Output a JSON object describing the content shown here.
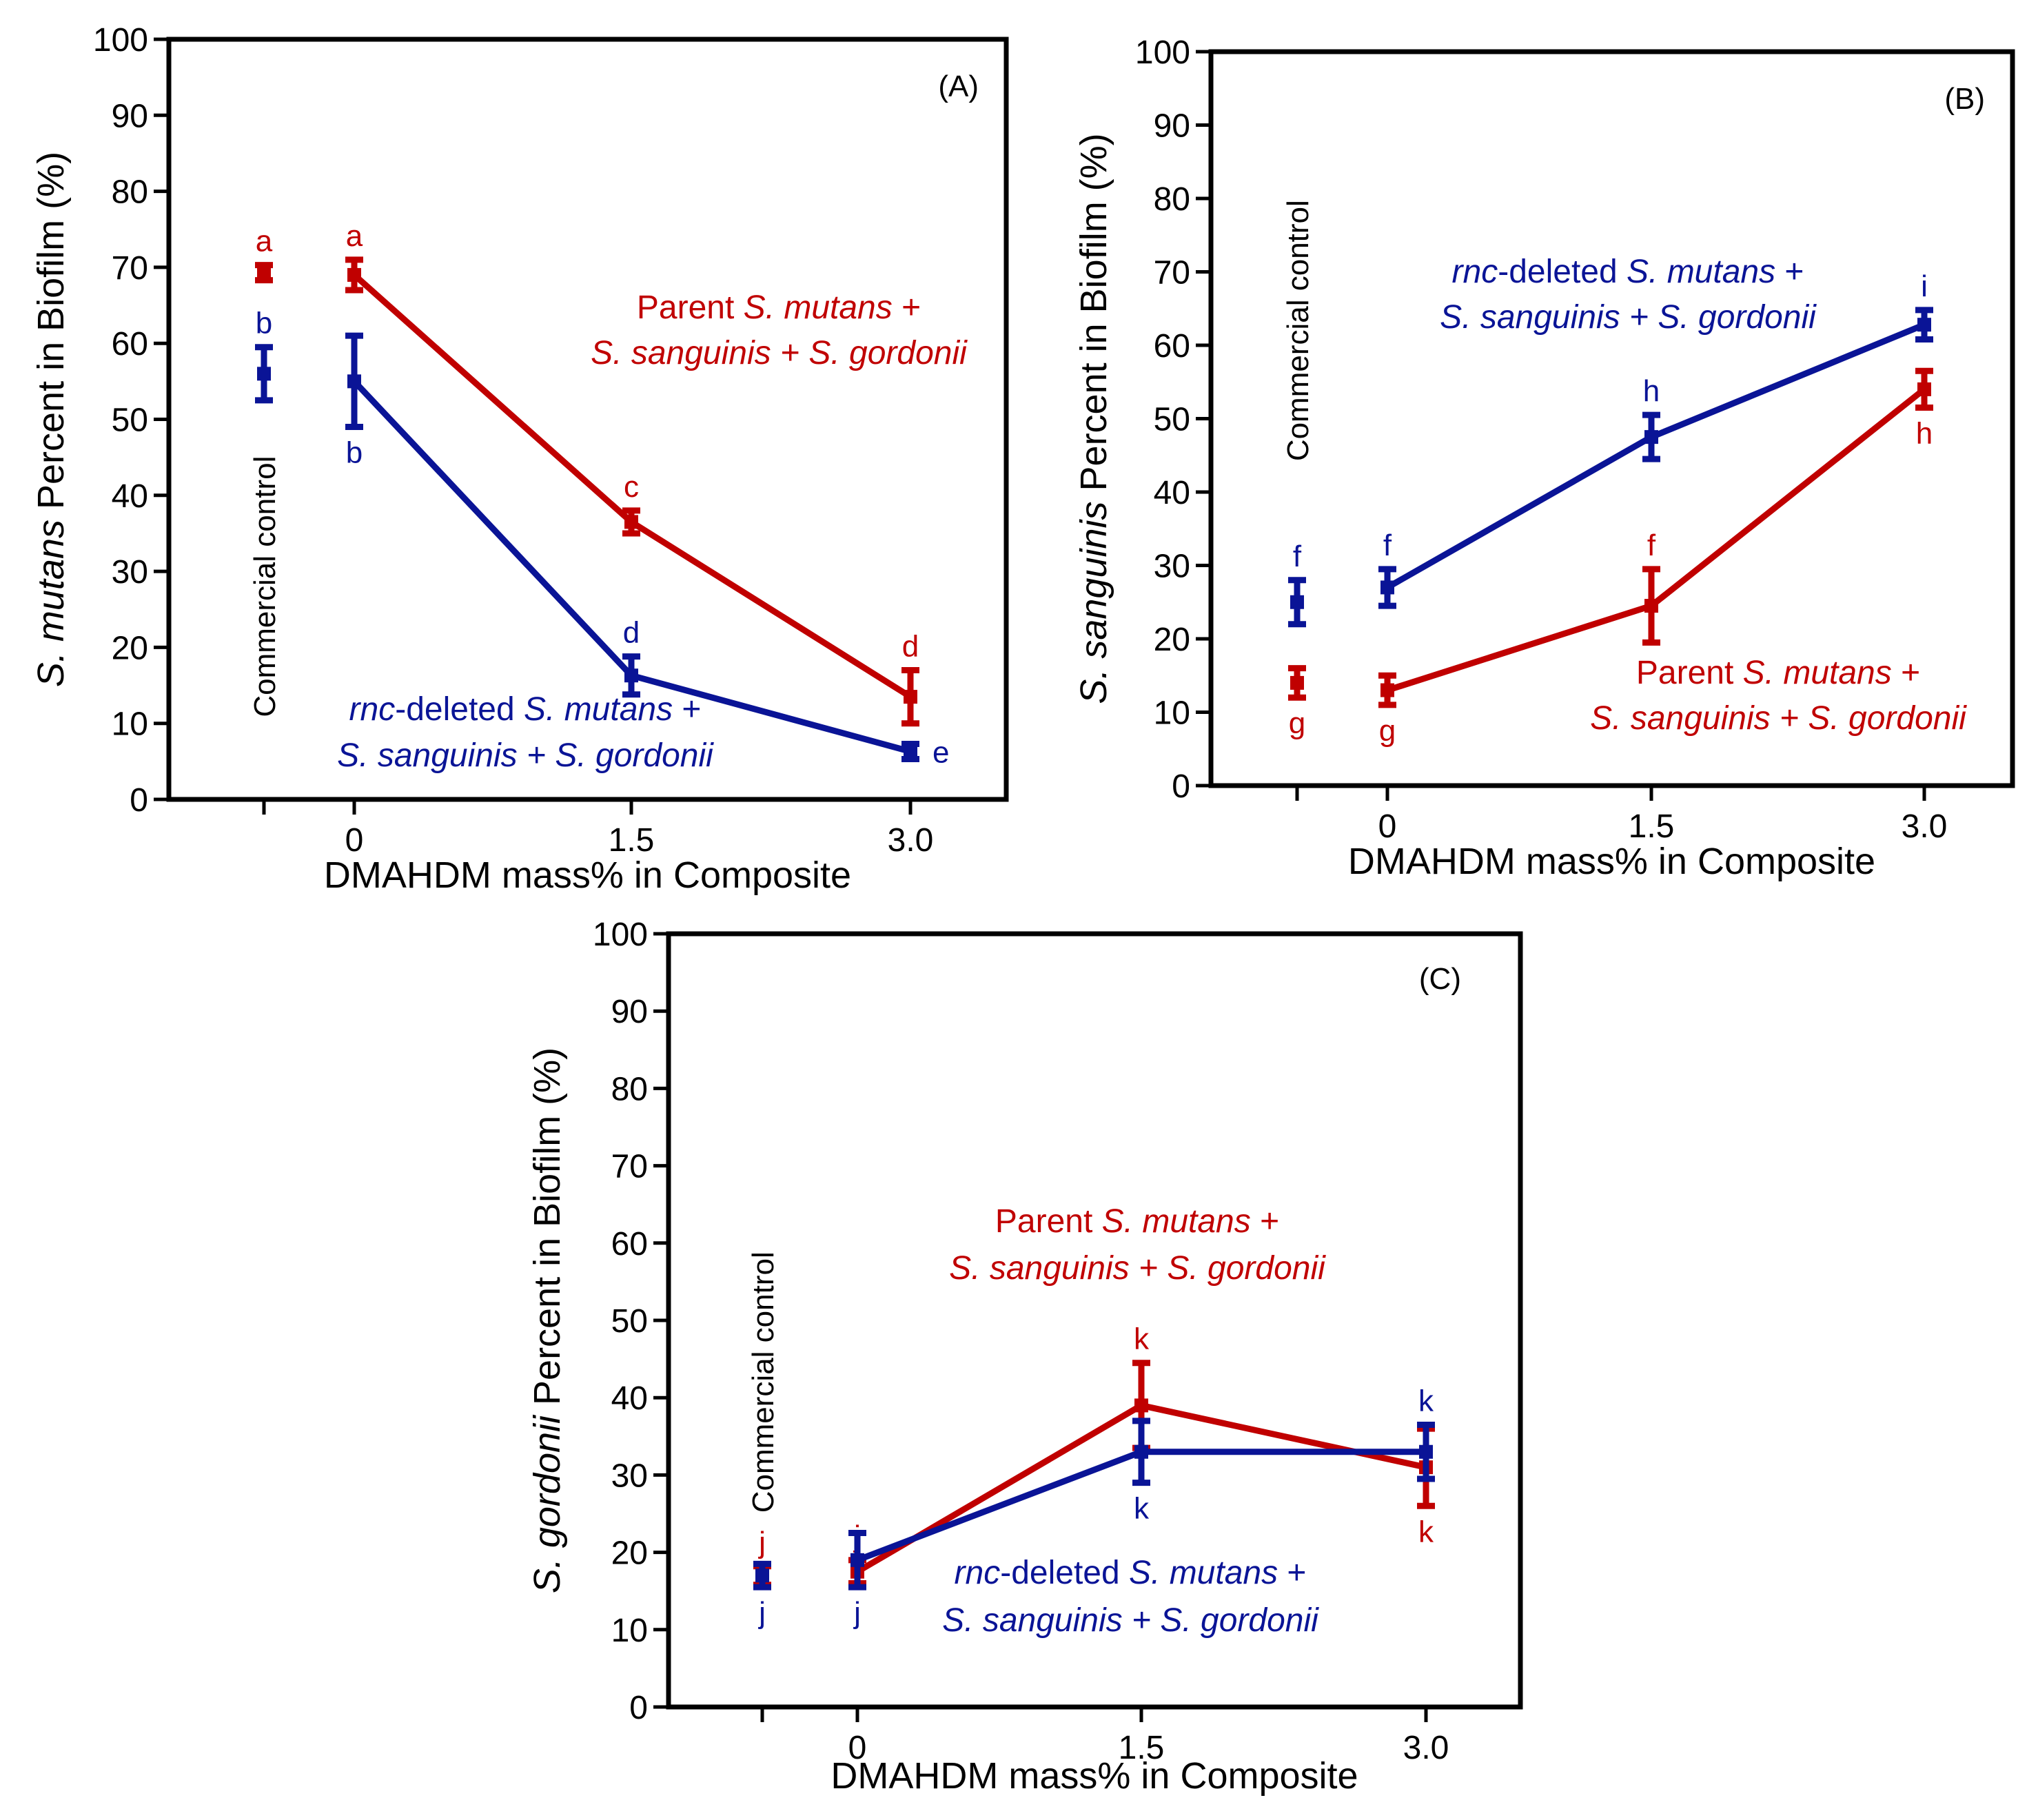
{
  "colors": {
    "parent": "#c00000",
    "rnc": "#0a1496",
    "axis": "#000000"
  },
  "chart_data": [
    {
      "type": "line",
      "panel": "(A)",
      "xlabel": "DMAHDM mass% in Composite",
      "ylabel_italic": "S. mutans",
      "ylabel_rest": " Percent in Biofilm (%)",
      "ylim": [
        0,
        100
      ],
      "yticks": [
        "0",
        "10",
        "20",
        "30",
        "40",
        "50",
        "60",
        "70",
        "80",
        "90",
        "100"
      ],
      "control_label": "Commercial  control",
      "categories": [
        "0",
        "1.5",
        "3.0"
      ],
      "series": [
        {
          "name": "Parent",
          "key": "parent",
          "values": [
            69,
            36.5,
            13.5
          ],
          "errors": [
            2,
            1.5,
            3.5
          ],
          "letters": [
            "a",
            "c",
            "d"
          ],
          "letter_pos": "above",
          "control": {
            "value": 69.3,
            "error": 1,
            "letter": "a",
            "letter_pos": "above"
          }
        },
        {
          "name": "rnc-deleted",
          "key": "rnc",
          "values": [
            55,
            16.3,
            6.3
          ],
          "errors": [
            6,
            2.5,
            1
          ],
          "letters": [
            "b",
            "d",
            "e"
          ],
          "letter_pos": [
            "below",
            "above",
            "right"
          ],
          "control": {
            "value": 56,
            "error": 3.5,
            "letter": "b",
            "letter_pos": "above"
          }
        }
      ],
      "legend": {
        "parent": {
          "l1a": "Parent ",
          "l1b": "S. mutans",
          "l1c": " +",
          "l2": "S. sanguinis + S. gordonii"
        },
        "rnc": {
          "l1a": "rnc",
          "l1b": "-deleted ",
          "l1c": "S. mutans",
          "l1d": " +",
          "l2": "S. sanguinis + S. gordonii"
        }
      }
    },
    {
      "type": "line",
      "panel": "(B)",
      "xlabel": "DMAHDM mass% in Composite",
      "ylabel_italic": "S. sanguinis",
      "ylabel_rest": " Percent in Biofilm (%)",
      "ylim": [
        0,
        100
      ],
      "yticks": [
        "0",
        "10",
        "20",
        "30",
        "40",
        "50",
        "60",
        "70",
        "80",
        "90",
        "100"
      ],
      "control_label": "Commercial  control",
      "categories": [
        "0",
        "1.5",
        "3.0"
      ],
      "series": [
        {
          "name": "Parent",
          "key": "parent",
          "values": [
            13,
            24.5,
            54
          ],
          "errors": [
            2,
            5,
            2.5
          ],
          "letters": [
            "g",
            "f",
            "h"
          ],
          "letter_pos": [
            "below",
            "above",
            "below"
          ],
          "control": {
            "value": 14,
            "error": 2,
            "letter": "g",
            "letter_pos": "below"
          }
        },
        {
          "name": "rnc-deleted",
          "key": "rnc",
          "values": [
            27,
            47.5,
            62.8
          ],
          "errors": [
            2.5,
            3,
            2
          ],
          "letters": [
            "f",
            "h",
            "i"
          ],
          "letter_pos": "above",
          "control": {
            "value": 25,
            "error": 3,
            "letter": "f",
            "letter_pos": "above"
          }
        }
      ],
      "legend": {
        "parent": {
          "l1a": "Parent ",
          "l1b": "S. mutans",
          "l1c": " +",
          "l2": "S. sanguinis + S. gordonii"
        },
        "rnc": {
          "l1a": "rnc",
          "l1b": "-deleted ",
          "l1c": "S. mutans",
          "l1d": " +",
          "l2": "S. sanguinis + S. gordonii"
        }
      }
    },
    {
      "type": "line",
      "panel": "(C)",
      "xlabel": "DMAHDM mass% in Composite",
      "ylabel_italic": "S. gordonii",
      "ylabel_rest": " Percent in Biofilm (%)",
      "ylim": [
        0,
        100
      ],
      "yticks": [
        "0",
        "10",
        "20",
        "30",
        "40",
        "50",
        "60",
        "70",
        "80",
        "90",
        "100"
      ],
      "control_label": "Commercial  control",
      "categories": [
        "0",
        "1.5",
        "3.0"
      ],
      "series": [
        {
          "name": "Parent",
          "key": "parent",
          "values": [
            17.5,
            39,
            31
          ],
          "errors": [
            1.5,
            5.5,
            5
          ],
          "letters": [
            "j",
            "k",
            "k"
          ],
          "letter_pos": [
            "above",
            "above",
            "below"
          ],
          "control": {
            "value": 17,
            "error": 1.2,
            "letter": "j",
            "letter_pos": "above"
          }
        },
        {
          "name": "rnc-deleted",
          "key": "rnc",
          "values": [
            19,
            33,
            33
          ],
          "errors": [
            3.5,
            4,
            3.5
          ],
          "letters": [
            "j",
            "k",
            "k"
          ],
          "letter_pos": [
            "below",
            "below",
            "above"
          ],
          "control": {
            "value": 17,
            "error": 1.5,
            "letter": "j",
            "letter_pos": "below"
          }
        }
      ],
      "legend": {
        "parent": {
          "l1a": "Parent ",
          "l1b": "S. mutans",
          "l1c": " +",
          "l2": "S. sanguinis + S. gordonii"
        },
        "rnc": {
          "l1a": "rnc",
          "l1b": "-deleted ",
          "l1c": "S. mutans",
          "l1d": " +",
          "l2": "S. sanguinis + S. gordonii"
        }
      }
    }
  ]
}
